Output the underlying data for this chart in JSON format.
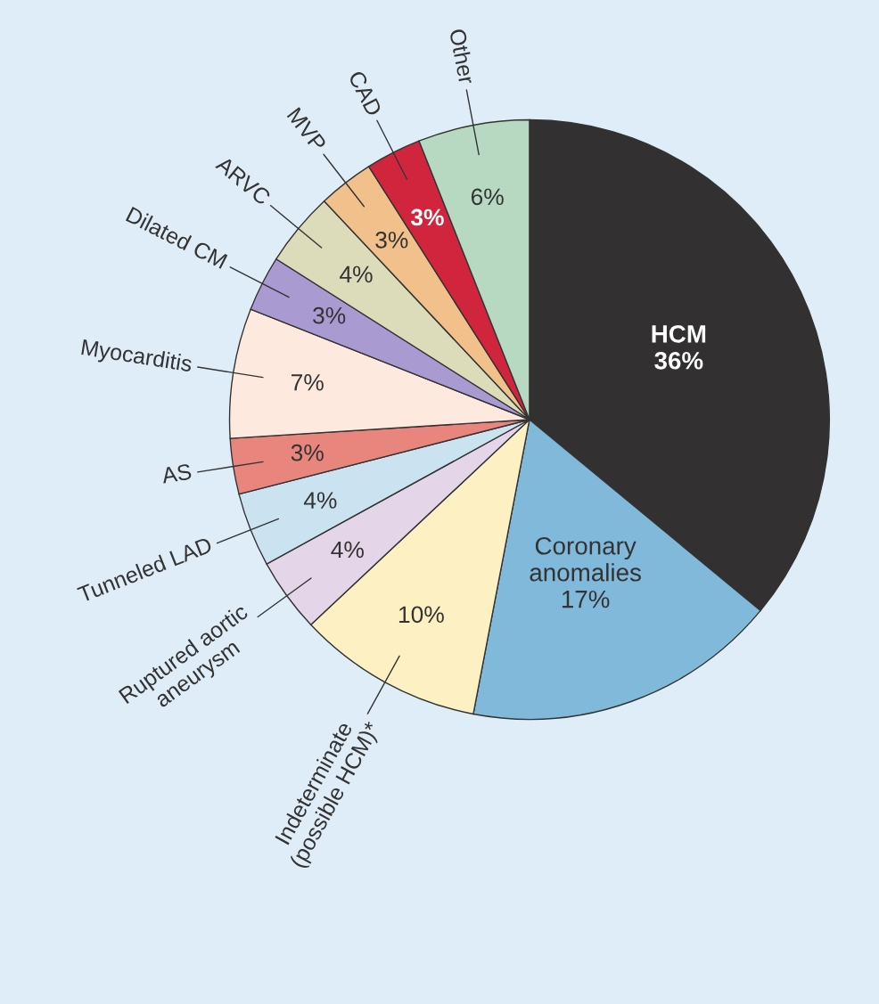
{
  "chart_data": {
    "type": "pie",
    "categories": [
      "HCM",
      "Coronary\nanomalies",
      "Indeterminate\n(possible HCM)*",
      "Ruptured aortic\naneurysm",
      "Tunneled LAD",
      "AS",
      "Myocarditis",
      "Dilated CM",
      "ARVC",
      "MVP",
      "CAD",
      "Other"
    ],
    "values": [
      36,
      17,
      10,
      4,
      4,
      3,
      7,
      3,
      4,
      3,
      3,
      6
    ],
    "value_labels": [
      "36%",
      "17%",
      "10%",
      "4%",
      "4%",
      "3%",
      "7%",
      "3%",
      "4%",
      "3%",
      "3%",
      "6%"
    ],
    "colors": [
      "#323031",
      "#80b9d9",
      "#fdf0c2",
      "#e4d5e9",
      "#cbe3f1",
      "#e8867d",
      "#fde9dd",
      "#a99ad1",
      "#dcdcba",
      "#f2c18b",
      "#d1253d",
      "#b7d9c1"
    ]
  }
}
